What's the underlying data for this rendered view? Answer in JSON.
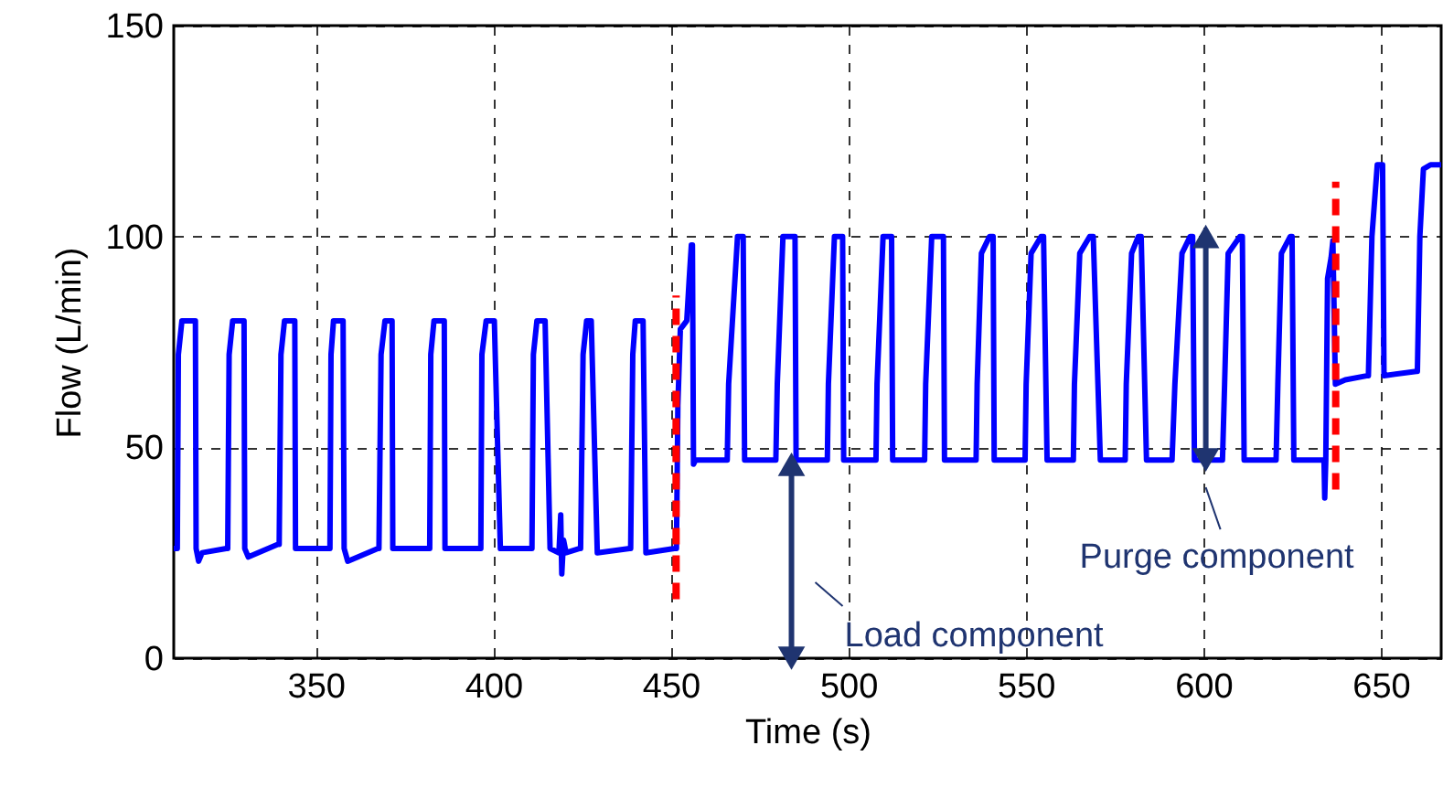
{
  "chart_data": {
    "type": "line",
    "xlabel": "Time (s)",
    "ylabel": "Flow (L/min)",
    "xlim": [
      310,
      667
    ],
    "xticks": [
      350,
      400,
      450,
      500,
      550,
      600,
      650
    ],
    "ylim": [
      0,
      150
    ],
    "yticks": [
      0,
      50,
      100,
      150
    ],
    "grid": true,
    "series": [
      {
        "color": "#0000ff",
        "x": [
          310,
          311,
          311.3,
          312.3,
          316.1,
          316.3,
          317,
          318,
          324.8,
          325.2,
          325.6,
          326.6,
          329.8,
          330,
          331,
          339.3,
          339.7,
          340.2,
          341.2,
          344.1,
          344.3,
          353.6,
          354,
          354.3,
          355,
          357.7,
          358,
          359,
          367.5,
          367.8,
          368.4,
          369.5,
          371.5,
          371.7,
          381.8,
          382.1,
          382.4,
          383.3,
          386.2,
          386.4,
          396.2,
          396.5,
          396.8,
          398,
          400.3,
          402,
          410.5,
          410.9,
          411.3,
          412.3,
          414.6,
          416,
          418.5,
          419,
          419.3,
          419.8,
          420.5,
          424.2,
          424.6,
          425.3,
          426.3,
          427.6,
          429.3,
          438.4,
          438.7,
          439.3,
          440,
          442.2,
          443,
          451,
          451.6,
          452,
          452.7,
          454.5,
          455.2,
          455.8,
          456.1,
          456.4,
          457,
          465.9,
          466.3,
          468.8,
          470.4,
          470.8,
          479.6,
          480,
          481.6,
          485,
          485.3,
          494.1,
          494.4,
          496.1,
          498.4,
          498.7,
          507.8,
          508.1,
          509.8,
          512.2,
          512.5,
          521.5,
          521.8,
          523.5,
          526.8,
          527.1,
          536,
          536.3,
          537.5,
          539.8,
          540.8,
          541.1,
          549.8,
          550.1,
          551.5,
          554.3,
          555,
          556,
          563.4,
          563.7,
          565.2,
          568,
          569,
          571,
          578,
          578.3,
          579.8,
          581.7,
          582.5,
          584,
          591.2,
          592,
          594,
          596.3,
          597,
          597.5,
          605.4,
          606,
          607,
          610.3,
          611,
          611.5,
          620.5,
          621,
          622,
          624.5,
          625,
          625.5,
          634,
          634.2,
          634.5,
          635,
          636,
          636.5,
          637.2,
          640,
          646.3,
          646.5,
          647.5,
          649,
          650.5,
          650.9,
          660,
          660.3,
          661,
          662,
          664,
          667
        ],
        "values": [
          26,
          26,
          72,
          80,
          80,
          26,
          23,
          25,
          26,
          26,
          72,
          80,
          80,
          26,
          24,
          27,
          27,
          72,
          80,
          80,
          26,
          26,
          26,
          72,
          80,
          80,
          26,
          23,
          26,
          26,
          72,
          80,
          80,
          26,
          26,
          26,
          72,
          80,
          80,
          26,
          26,
          26,
          72,
          80,
          80,
          26,
          26,
          26,
          72,
          80,
          80,
          26,
          25,
          34,
          20,
          28,
          25,
          26,
          26,
          72,
          80,
          80,
          25,
          26,
          26,
          72,
          80,
          80,
          25,
          26,
          26,
          60,
          78,
          80,
          90,
          98,
          98,
          46,
          47,
          47,
          65,
          100,
          100,
          47,
          47,
          65,
          100,
          100,
          47,
          47,
          65,
          100,
          100,
          47,
          47,
          65,
          100,
          100,
          47,
          47,
          65,
          100,
          100,
          47,
          47,
          65,
          96,
          100,
          100,
          47,
          47,
          65,
          96,
          100,
          100,
          47,
          47,
          65,
          96,
          100,
          100,
          47,
          47,
          65,
          96,
          100,
          100,
          47,
          47,
          65,
          96,
          100,
          100,
          47,
          47,
          65,
          96,
          100,
          100,
          47,
          47,
          65,
          96,
          100,
          100,
          47,
          47,
          38,
          47,
          90,
          95,
          99,
          65,
          66,
          67,
          67,
          100,
          117,
          117,
          67,
          68,
          68,
          100,
          116,
          117,
          117
        ]
      },
      {
        "color": "#ff0000",
        "line_style": "dashed",
        "x": [
          451.5,
          451.5
        ],
        "values": [
          14,
          86
        ]
      },
      {
        "color": "#ff0000",
        "line_style": "dashed",
        "x": [
          637.3,
          637.3
        ],
        "values": [
          40,
          113
        ]
      },
      {
        "color": "#1f3470",
        "marker": "triangle",
        "x": [
          484,
          484
        ],
        "values": [
          0,
          46
        ]
      },
      {
        "color": "#1f3470",
        "marker": "triangle",
        "x": [
          600.7,
          600.7
        ],
        "values": [
          47,
          100
        ]
      }
    ],
    "annotations": [
      {
        "text": "Load component",
        "x": 484,
        "y": 18
      },
      {
        "text": "Purge component",
        "x": 600.7,
        "y": 47
      }
    ]
  }
}
